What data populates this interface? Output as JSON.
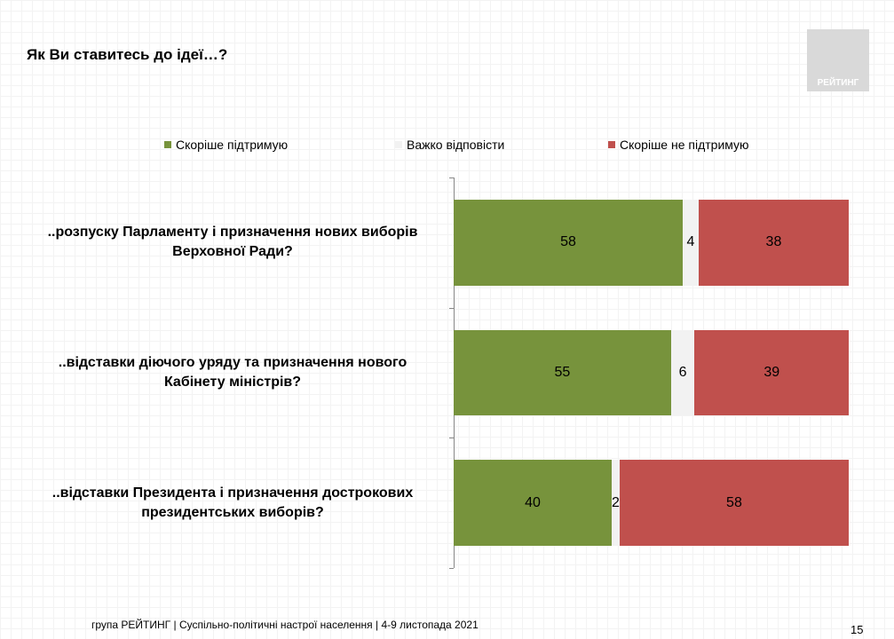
{
  "logo": "РЕЙТИНГ",
  "footer": "група РЕЙТИНГ | Суспільно-політичні настрої населення  | 4-9 листопада 2021",
  "page_number": "15",
  "chart_data": {
    "type": "stacked-bar-horizontal",
    "title": "Як Ви ставитесь до ідеї…?",
    "categories": [
      "..розпуску Парламенту і призначення нових виборів Верховної Ради?",
      "..відставки діючого уряду та призначення нового Кабінету міністрів?",
      "..відставки Президента і призначення дострокових президентських виборів?"
    ],
    "series": [
      {
        "name": "Скоріше підтримую",
        "color": "#77933c",
        "values": [
          58,
          55,
          40
        ]
      },
      {
        "name": "Важко відповісти",
        "color": "#f2f2f2",
        "values": [
          4,
          6,
          2
        ]
      },
      {
        "name": "Скоріше не підтримую",
        "color": "#c0504d",
        "values": [
          38,
          39,
          58
        ]
      }
    ],
    "xlim": [
      0,
      100
    ]
  }
}
